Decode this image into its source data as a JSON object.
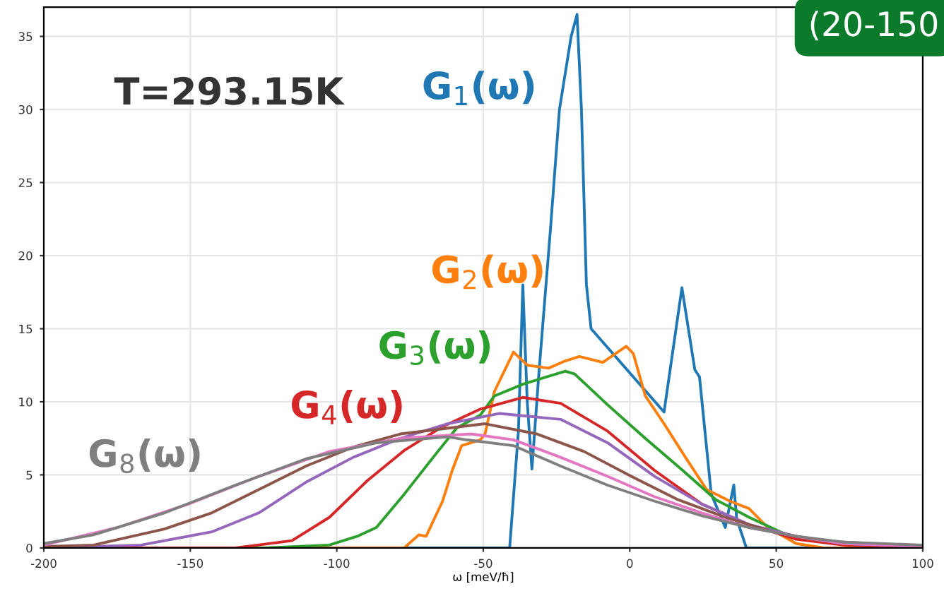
{
  "chart_data": {
    "type": "line",
    "xlabel": "ω [meV/ħ]",
    "xlim": [
      -200,
      100
    ],
    "ylim": [
      0,
      37
    ],
    "xticks": [
      -200,
      -150,
      -100,
      -50,
      0,
      50,
      100
    ],
    "yticks": [
      0,
      5,
      10,
      15,
      20,
      25,
      30,
      35
    ],
    "grid": true,
    "legend": false,
    "marker": "none",
    "line_style": "solid",
    "annotations": [
      "T=293.15K",
      "(20-150"
    ],
    "series": [
      {
        "name": "G$_{1}$(ω)",
        "color": "#1f77b4",
        "x": [
          -200,
          -41,
          -38,
          -36.5,
          -35,
          -33.4,
          -31,
          -27,
          -24,
          -20,
          -18,
          -16.5,
          -14.8,
          -13.2,
          11.7,
          17.8,
          22.2,
          23.8,
          27.8,
          32.6,
          35.5,
          36.5,
          39.8,
          100
        ],
        "values": [
          0,
          0,
          8,
          18,
          10,
          5.4,
          12,
          22,
          30,
          35,
          36.5,
          30,
          18,
          15,
          9.3,
          17.8,
          12.2,
          11.7,
          3.7,
          1.4,
          4.3,
          2,
          0,
          0
        ]
      },
      {
        "name": "G$_{2}$(ω)",
        "color": "#ff7f0e",
        "x": [
          -200,
          -77,
          -72,
          -69.5,
          -63.9,
          -60.6,
          -57.4,
          -51,
          -49.4,
          -46.2,
          -39.7,
          -34.9,
          -27.7,
          -22,
          -17.2,
          -9.2,
          -1.2,
          1.2,
          5.3,
          11.7,
          19,
          26.2,
          34.2,
          40.7,
          47.1,
          56.8,
          66.4,
          100
        ],
        "values": [
          0,
          0,
          0.9,
          0.8,
          3.2,
          5.3,
          7.0,
          7.4,
          7.8,
          10.7,
          13.4,
          12.5,
          12.3,
          12.8,
          13.1,
          12.7,
          13.8,
          13.3,
          10.4,
          8.5,
          6.2,
          4.0,
          3.2,
          2.7,
          1.4,
          0.3,
          0,
          0
        ]
      },
      {
        "name": "G$_{3}$(ω)",
        "color": "#2ca02c",
        "x": [
          -200,
          -125,
          -102.6,
          -93,
          -86.5,
          -76.9,
          -67.1,
          -59.1,
          -51,
          -46.2,
          -36.5,
          -22,
          -18.8,
          -7.6,
          5.3,
          18.1,
          29.4,
          40.7,
          53.5,
          69.6,
          100
        ],
        "values": [
          0,
          0,
          0.2,
          0.8,
          1.4,
          3.7,
          6.2,
          8.2,
          9.1,
          10.4,
          11.2,
          12.1,
          11.9,
          9.8,
          7.5,
          5.3,
          3.3,
          2.1,
          0.9,
          0.3,
          0.1
        ]
      },
      {
        "name": "G$_{4}$(ω)",
        "color": "#d62728",
        "x": [
          -200,
          -134.6,
          -115.3,
          -102.5,
          -89.6,
          -76.8,
          -63.9,
          -51,
          -36.5,
          -23.6,
          -7.6,
          8.5,
          24.6,
          40.7,
          56.8,
          73,
          100
        ],
        "values": [
          0,
          0,
          0.5,
          2.1,
          4.6,
          6.7,
          8.3,
          9.5,
          10.3,
          9.9,
          8.0,
          5.3,
          3.0,
          1.6,
          0.6,
          0.2,
          0
        ]
      },
      {
        "color": "#9467bd",
        "x": [
          -200,
          -166.8,
          -142.7,
          -126.6,
          -110.5,
          -94.4,
          -78.3,
          -62.2,
          -44.6,
          -23.6,
          -7.6,
          8.5,
          24.6,
          40.7,
          56.8,
          73,
          100
        ],
        "values": [
          0,
          0.2,
          1.1,
          2.4,
          4.5,
          6.2,
          7.5,
          8.5,
          9.2,
          8.8,
          7.2,
          4.9,
          3.0,
          1.6,
          0.8,
          0.3,
          0.1
        ]
      },
      {
        "color": "#8c564b",
        "x": [
          -200,
          -183,
          -158.8,
          -142.7,
          -126.6,
          -110.5,
          -94.4,
          -78.3,
          -49.4,
          -31.7,
          -15.6,
          0.5,
          16.5,
          32.6,
          48.7,
          64.8,
          100
        ],
        "values": [
          0.1,
          0.2,
          1.3,
          2.4,
          4.0,
          5.6,
          6.9,
          7.8,
          8.5,
          7.8,
          6.6,
          4.9,
          3.3,
          2.1,
          1.1,
          0.5,
          0.1
        ]
      },
      {
        "color": "#e377c2",
        "x": [
          -200,
          -174.8,
          -150.7,
          -126.6,
          -102.5,
          -78.3,
          -54.2,
          -39.7,
          -23.6,
          -7.6,
          8.5,
          24.6,
          40.7,
          56.8,
          73,
          100
        ],
        "values": [
          0.2,
          1.4,
          3.0,
          4.9,
          6.6,
          7.5,
          7.8,
          7.4,
          6.2,
          4.9,
          3.5,
          2.4,
          1.4,
          0.8,
          0.3,
          0.1
        ]
      },
      {
        "name": "G$_{8}$(ω)",
        "color": "#7f7f7f",
        "x": [
          -200,
          -183,
          -158.8,
          -134.6,
          -110.5,
          -86.4,
          -62.2,
          -55.8,
          -39.7,
          -23.6,
          -7.6,
          8.5,
          24.6,
          40.7,
          56.8,
          73,
          100
        ],
        "values": [
          0.3,
          0.9,
          2.4,
          4.3,
          6.1,
          7.2,
          7.6,
          7.4,
          7.0,
          5.6,
          4.3,
          3.2,
          2.2,
          1.4,
          0.8,
          0.4,
          0.2
        ]
      }
    ]
  }
}
